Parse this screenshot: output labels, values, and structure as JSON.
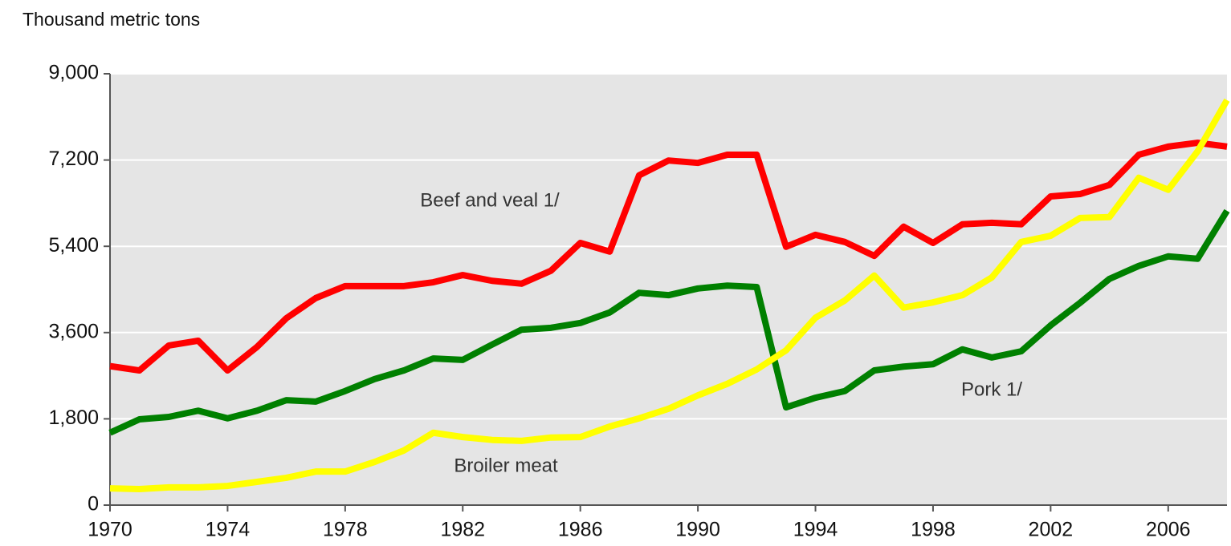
{
  "chart_data": {
    "type": "line",
    "y_axis_label": "Thousand metric tons",
    "x": [
      1970,
      1971,
      1972,
      1973,
      1974,
      1975,
      1976,
      1977,
      1978,
      1979,
      1980,
      1981,
      1982,
      1983,
      1984,
      1985,
      1986,
      1987,
      1988,
      1989,
      1990,
      1991,
      1992,
      1993,
      1994,
      1995,
      1996,
      1997,
      1998,
      1999,
      2000,
      2001,
      2002,
      2003,
      2004,
      2005,
      2006,
      2007,
      2008
    ],
    "series": [
      {
        "name": "Beef and veal 1/",
        "color": "#ff0000",
        "values": [
          2900,
          2810,
          3330,
          3430,
          2810,
          3300,
          3900,
          4320,
          4570,
          4570,
          4570,
          4650,
          4800,
          4680,
          4620,
          4890,
          5470,
          5290,
          6880,
          7190,
          7140,
          7310,
          7310,
          5390,
          5640,
          5490,
          5200,
          5810,
          5470,
          5860,
          5890,
          5860,
          6440,
          6490,
          6680,
          7310,
          7480,
          7560,
          7480
        ]
      },
      {
        "name": "Pork 1/",
        "color": "#008000",
        "values": [
          1510,
          1790,
          1840,
          1970,
          1810,
          1970,
          2190,
          2160,
          2380,
          2630,
          2810,
          3060,
          3030,
          3350,
          3660,
          3700,
          3800,
          4020,
          4430,
          4380,
          4520,
          4580,
          4550,
          2040,
          2240,
          2380,
          2810,
          2890,
          2940,
          3250,
          3080,
          3210,
          3750,
          4220,
          4720,
          4990,
          5190,
          5140,
          6140
        ]
      },
      {
        "name": "Broiler meat",
        "color": "#ffff00",
        "values": [
          350,
          335,
          370,
          370,
          400,
          485,
          570,
          700,
          700,
          900,
          1140,
          1510,
          1420,
          1360,
          1340,
          1410,
          1420,
          1640,
          1810,
          2010,
          2290,
          2530,
          2830,
          3230,
          3910,
          4270,
          4790,
          4120,
          4230,
          4380,
          4750,
          5490,
          5620,
          5990,
          6010,
          6830,
          6580,
          7380,
          8450
        ]
      }
    ],
    "xlim": [
      1970,
      2008
    ],
    "xticks": [
      1970,
      1974,
      1978,
      1982,
      1986,
      1990,
      1994,
      1998,
      2002,
      2006
    ],
    "ylim": [
      0,
      9000
    ],
    "yticks": [
      0,
      {
        "value": 1800,
        "label": "1,800"
      },
      {
        "value": 3600,
        "label": "3,600"
      },
      {
        "value": 5400,
        "label": "5,400"
      },
      {
        "value": 7200,
        "label": "7,200"
      },
      {
        "value": 9000,
        "label": "9,000"
      }
    ],
    "grid": true
  }
}
